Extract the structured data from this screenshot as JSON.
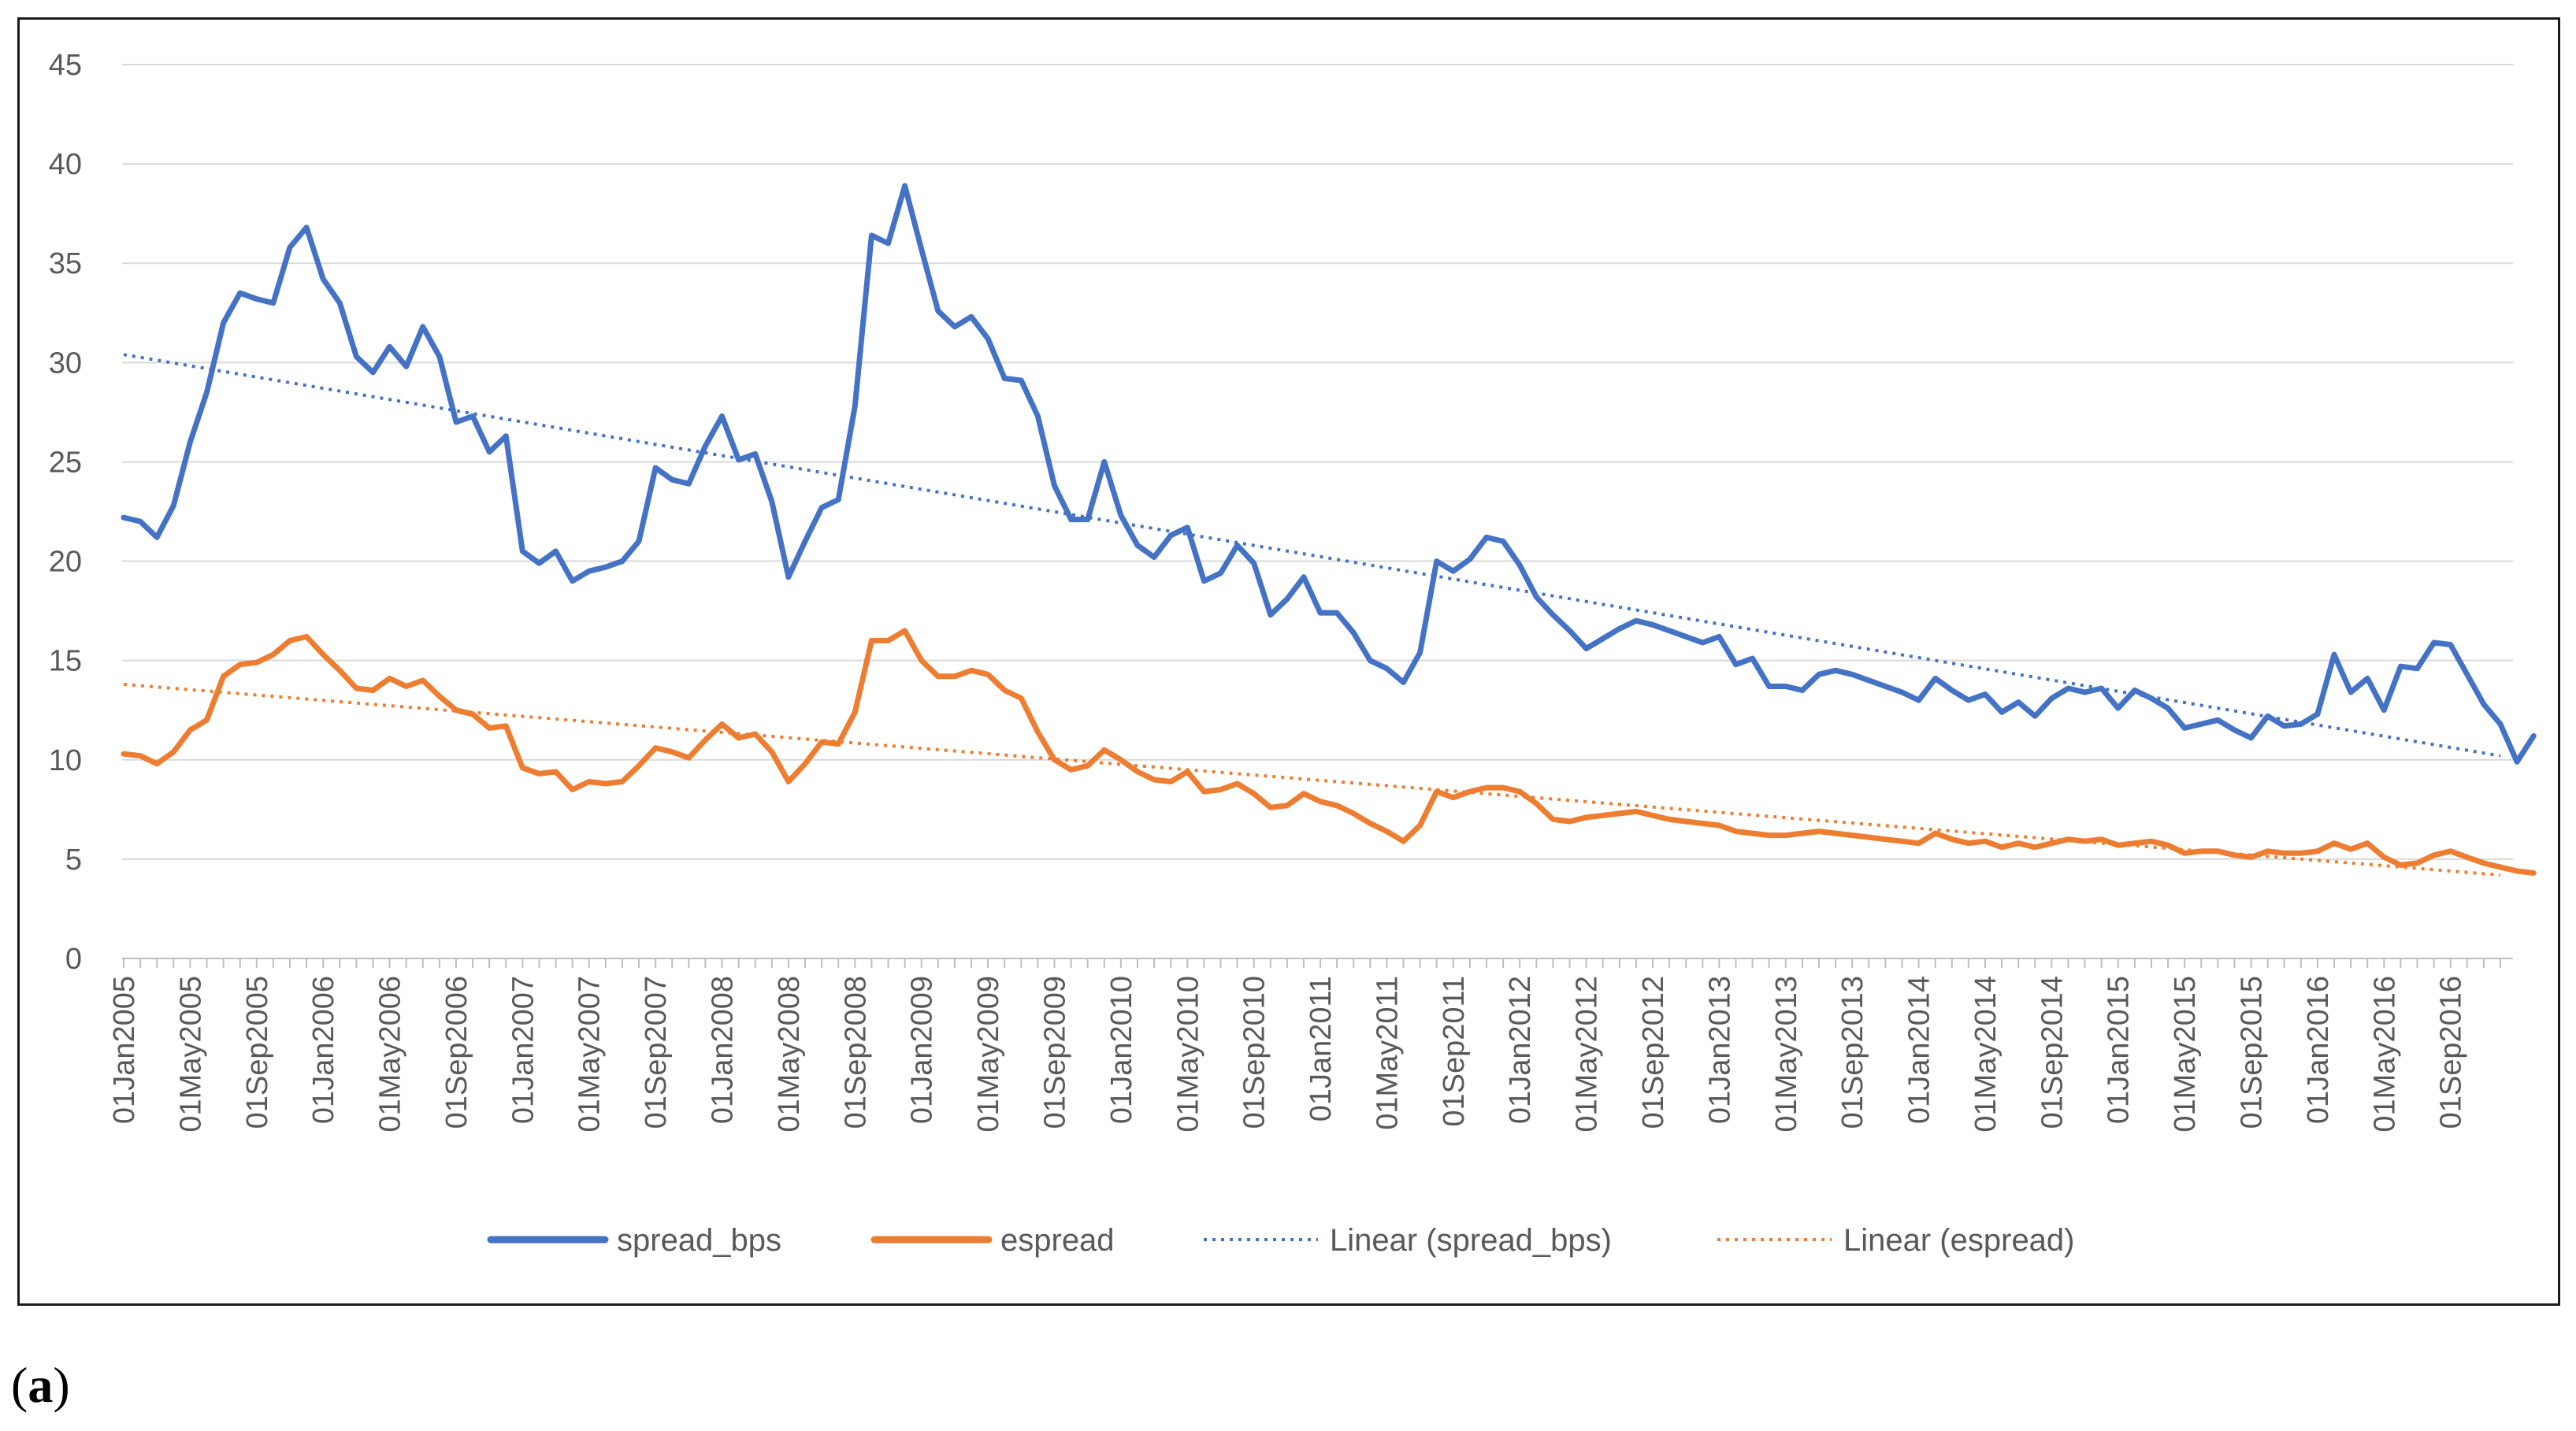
{
  "panel_label": {
    "open": "(",
    "letter": "a",
    "close": ")"
  },
  "chart_data": {
    "type": "line",
    "title": "",
    "xlabel": "",
    "ylabel": "",
    "ylim": [
      0,
      45
    ],
    "yticks": [
      0,
      5,
      10,
      15,
      20,
      25,
      30,
      35,
      40,
      45
    ],
    "grid": true,
    "legend_position": "bottom",
    "x_start": "Jan 2005",
    "x_interval": "monthly",
    "x_count": 144,
    "x_tick_labels": [
      "01Jan2005",
      "01May2005",
      "01Sep2005",
      "01Jan2006",
      "01May2006",
      "01Sep2006",
      "01Jan2007",
      "01May2007",
      "01Sep2007",
      "01Jan2008",
      "01May2008",
      "01Sep2008",
      "01Jan2009",
      "01May2009",
      "01Sep2009",
      "01Jan2010",
      "01May2010",
      "01Sep2010",
      "01Jan2011",
      "01May2011",
      "01Sep2011",
      "01Jan2012",
      "01May2012",
      "01Sep2012",
      "01Jan2013",
      "01May2013",
      "01Sep2013",
      "01Jan2014",
      "01May2014",
      "01Sep2014",
      "01Jan2015",
      "01May2015",
      "01Sep2015",
      "01Jan2016",
      "01May2016",
      "01Sep2016"
    ],
    "series": [
      {
        "name": "spread_bps",
        "color": "#4472C4",
        "style": "solid",
        "values": [
          22.2,
          22.0,
          21.2,
          22.8,
          26.0,
          28.5,
          32.0,
          33.5,
          33.2,
          33.0,
          35.8,
          36.8,
          34.2,
          33.0,
          30.3,
          29.5,
          30.8,
          29.8,
          31.8,
          30.3,
          27.0,
          27.3,
          25.5,
          26.3,
          20.5,
          19.9,
          20.5,
          19.0,
          19.5,
          19.7,
          20.0,
          21.0,
          24.7,
          24.1,
          23.9,
          25.8,
          27.3,
          25.1,
          25.4,
          23.0,
          19.2,
          21.0,
          22.7,
          23.1,
          27.8,
          36.4,
          36.0,
          38.9,
          35.7,
          32.6,
          31.8,
          32.3,
          31.2,
          29.2,
          29.1,
          27.3,
          23.8,
          22.1,
          22.1,
          25.0,
          22.3,
          20.8,
          20.2,
          21.3,
          21.7,
          19.0,
          19.4,
          20.8,
          19.9,
          17.3,
          18.1,
          19.2,
          17.4,
          17.4,
          16.4,
          15.0,
          14.6,
          13.9,
          15.4,
          20.0,
          19.5,
          20.1,
          21.2,
          21.0,
          19.8,
          18.2,
          17.3,
          16.5,
          15.6,
          16.1,
          16.6,
          17.0,
          16.8,
          16.5,
          16.2,
          15.9,
          16.2,
          14.8,
          15.1,
          13.7,
          13.7,
          13.5,
          14.3,
          14.5,
          14.3,
          14.0,
          13.7,
          13.4,
          13.0,
          14.1,
          13.5,
          13.0,
          13.3,
          12.4,
          12.9,
          12.2,
          13.1,
          13.6,
          13.4,
          13.6,
          12.6,
          13.5,
          13.1,
          12.6,
          11.6,
          11.8,
          12.0,
          11.5,
          11.1,
          12.2,
          11.7,
          11.8,
          12.3,
          15.3,
          13.4,
          14.1,
          12.5,
          14.7,
          14.6,
          15.9,
          15.8,
          14.3,
          12.8,
          11.8,
          9.9,
          11.2
        ]
      },
      {
        "name": "espread",
        "color": "#ED7D31",
        "style": "solid",
        "values": [
          10.3,
          10.2,
          9.8,
          10.4,
          11.5,
          12.0,
          14.2,
          14.8,
          14.9,
          15.3,
          16.0,
          16.2,
          15.3,
          14.5,
          13.6,
          13.5,
          14.1,
          13.7,
          14.0,
          13.2,
          12.5,
          12.3,
          11.6,
          11.7,
          9.6,
          9.3,
          9.4,
          8.5,
          8.9,
          8.8,
          8.9,
          9.7,
          10.6,
          10.4,
          10.1,
          11.0,
          11.8,
          11.1,
          11.3,
          10.4,
          8.9,
          9.8,
          10.9,
          10.8,
          12.4,
          16.0,
          16.0,
          16.5,
          15.0,
          14.2,
          14.2,
          14.5,
          14.3,
          13.5,
          13.1,
          11.4,
          10.0,
          9.5,
          9.7,
          10.5,
          10.0,
          9.4,
          9.0,
          8.9,
          9.4,
          8.4,
          8.5,
          8.8,
          8.3,
          7.6,
          7.7,
          8.3,
          7.9,
          7.7,
          7.3,
          6.8,
          6.4,
          5.9,
          6.7,
          8.4,
          8.1,
          8.4,
          8.6,
          8.6,
          8.4,
          7.8,
          7.0,
          6.9,
          7.1,
          7.2,
          7.3,
          7.4,
          7.2,
          7.0,
          6.9,
          6.8,
          6.7,
          6.4,
          6.3,
          6.2,
          6.2,
          6.3,
          6.4,
          6.3,
          6.2,
          6.1,
          6.0,
          5.9,
          5.8,
          6.3,
          6.0,
          5.8,
          5.9,
          5.6,
          5.8,
          5.6,
          5.8,
          6.0,
          5.9,
          6.0,
          5.7,
          5.8,
          5.9,
          5.7,
          5.3,
          5.4,
          5.4,
          5.2,
          5.1,
          5.4,
          5.3,
          5.3,
          5.4,
          5.8,
          5.5,
          5.8,
          5.1,
          4.7,
          4.8,
          5.2,
          5.4,
          5.1,
          4.8,
          4.6,
          4.4,
          4.3
        ]
      },
      {
        "name": "Linear (spread_bps)",
        "color": "#4472C4",
        "style": "dotted",
        "trend": [
          30.4,
          10.2
        ]
      },
      {
        "name": "Linear (espread)",
        "color": "#ED7D31",
        "style": "dotted",
        "trend": [
          13.8,
          4.2
        ]
      }
    ]
  }
}
